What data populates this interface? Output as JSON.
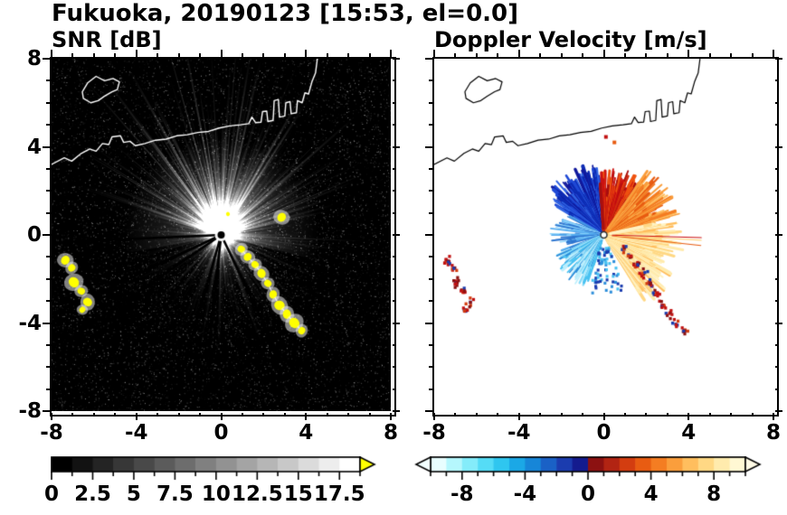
{
  "figure_title": "Fukuoka, 20190123 [15:53, el=0.0]",
  "panels": {
    "snr": {
      "title": "SNR [dB]",
      "y_tick_labels": [
        "8",
        "4",
        "0",
        "-4",
        "-8"
      ],
      "x_tick_labels": [
        "-8",
        "-4",
        "0",
        "4",
        "8"
      ]
    },
    "vel": {
      "title": "Doppler Velocity [m/s]",
      "x_tick_labels": [
        "-8",
        "-4",
        "0",
        "4",
        "8"
      ]
    }
  },
  "colorbars": {
    "snr": {
      "tick_labels": [
        "0",
        "2.5",
        "5",
        "7.5",
        "10",
        "12.5",
        "15",
        "17.5"
      ],
      "vmin": 0,
      "vmax": 18.75,
      "n_segments": 15,
      "label_step": 2.5,
      "minor_step": 1.25,
      "overflow_arrow_color": "#ffff00"
    },
    "vel": {
      "tick_labels": [
        "-8",
        "-4",
        "0",
        "4",
        "8"
      ],
      "vmin": -10,
      "vmax": 10,
      "label_step": 4,
      "minor_step": 1,
      "segment_colors": [
        "#e8feff",
        "#b5f7fd",
        "#84ecfa",
        "#55dcf6",
        "#2fc6ef",
        "#1ba8e6",
        "#1786d8",
        "#1a61c6",
        "#1b3caf",
        "#141b8e",
        "#8c1111",
        "#b22413",
        "#d33d10",
        "#e85c12",
        "#f47d22",
        "#fa9e3c",
        "#ffbe5e",
        "#ffd884",
        "#ffebad",
        "#fff8d3"
      ],
      "under_arrow_color": "#f2ffff",
      "over_arrow_color": "#fffbe6"
    }
  },
  "chart_data": {
    "type": "heatmap",
    "subtype": "radar_ppi_pair",
    "title": "Fukuoka, 20190123 [15:53, el=0.0]",
    "site": "Fukuoka",
    "date": "20190123",
    "time": "15:53",
    "elevation_deg": 0.0,
    "x_range": [
      -8,
      8
    ],
    "y_range": [
      -8,
      8
    ],
    "x_ticks": [
      -8,
      -4,
      0,
      4,
      8
    ],
    "y_ticks": [
      -8,
      -4,
      0,
      4,
      8
    ],
    "radar_origin": [
      0,
      0
    ],
    "panels": [
      {
        "variable": "SNR",
        "units": "dB",
        "colormap": "grayscale, discrete 15 steps, yellow overflow arrow",
        "scale_ticks": [
          0,
          2.5,
          5,
          7.5,
          10,
          12.5,
          15,
          17.5
        ],
        "description": "Black background with bright radial echo fan centered on the radar at the origin, strongest toward the north; thin blocked (black) rays to the west and southwest; saturated yellow ground-clutter patches southwest of the radar and along an island chain running southeast from the radar; coastline of Hakata Bay drawn in white along the top."
      },
      {
        "variable": "Doppler Velocity",
        "units": "m/s",
        "colormap": "diverging cyan-blue (negative) to red-orange-yellow (positive), discrete 20 steps with under/over arrows",
        "scale_ticks": [
          -8,
          -4,
          0,
          4,
          8
        ],
        "description": "White background; compact velocity fan around the radar: dark blue lobe to the north-northwest, cyan/light-blue streaks to the west and southwest, dark red/red lobe to the north-northeast, orange to the east-northeast and a broad pale-yellow fan to the east-southeast; scattered blue specks just south of the radar; red/blue clutter specks southwest and along the southeast island chain; coastline drawn in black."
      }
    ],
    "render": {
      "seed": 20190123,
      "coastline": {
        "main": [
          [
            -8,
            3.2
          ],
          [
            -7.4,
            3.5
          ],
          [
            -7.05,
            3.35
          ],
          [
            -6.6,
            3.7
          ],
          [
            -6.2,
            3.9
          ],
          [
            -5.9,
            3.8
          ],
          [
            -5.6,
            4.15
          ],
          [
            -5.3,
            4.1
          ],
          [
            -5.15,
            4.45
          ],
          [
            -4.75,
            4.5
          ],
          [
            -4.6,
            4.2
          ],
          [
            -4.3,
            4.25
          ],
          [
            -4.05,
            4.05
          ],
          [
            -3.6,
            4.15
          ],
          [
            -3.1,
            4.3
          ],
          [
            -2.6,
            4.35
          ],
          [
            -2.1,
            4.5
          ],
          [
            -1.6,
            4.55
          ],
          [
            -1.1,
            4.65
          ],
          [
            -0.6,
            4.7
          ],
          [
            -0.1,
            4.85
          ],
          [
            0.4,
            4.95
          ],
          [
            0.9,
            5.0
          ],
          [
            1.3,
            5.05
          ],
          [
            1.45,
            5.35
          ],
          [
            1.62,
            5.1
          ],
          [
            1.88,
            5.12
          ],
          [
            1.95,
            5.6
          ],
          [
            2.15,
            5.62
          ],
          [
            2.2,
            5.15
          ],
          [
            2.45,
            5.2
          ],
          [
            2.5,
            6.1
          ],
          [
            2.7,
            6.15
          ],
          [
            2.75,
            5.35
          ],
          [
            3.0,
            5.4
          ],
          [
            3.05,
            6.0
          ],
          [
            3.25,
            6.05
          ],
          [
            3.3,
            5.5
          ],
          [
            3.55,
            5.55
          ],
          [
            3.6,
            6.1
          ],
          [
            3.82,
            6.0
          ],
          [
            3.95,
            6.45
          ],
          [
            4.12,
            6.4
          ],
          [
            4.28,
            6.95
          ],
          [
            4.45,
            7.35
          ],
          [
            4.55,
            8.1
          ]
        ],
        "island": [
          [
            -6.5,
            6.2
          ],
          [
            -6.15,
            6.0
          ],
          [
            -5.8,
            6.1
          ],
          [
            -5.5,
            6.3
          ],
          [
            -5.15,
            6.5
          ],
          [
            -4.9,
            6.6
          ],
          [
            -4.8,
            6.95
          ],
          [
            -5.1,
            7.1
          ],
          [
            -5.5,
            7.0
          ],
          [
            -5.9,
            7.2
          ],
          [
            -6.3,
            6.9
          ],
          [
            -6.55,
            6.5
          ],
          [
            -6.5,
            6.2
          ]
        ]
      },
      "snr": {
        "sectors": [
          {
            "az0": 55,
            "az1": 140,
            "amp": 0.62
          },
          {
            "az0": 15,
            "az1": 165,
            "amp": 0.45
          },
          {
            "az0": 165,
            "az1": 200,
            "amp": 0.22
          },
          {
            "az0": 200,
            "az1": 255,
            "amp": 0.16
          },
          {
            "az0": 255,
            "az1": 305,
            "amp": 0.22
          },
          {
            "az0": 305,
            "az1": 345,
            "amp": 0.2
          },
          {
            "az0": 345,
            "az1": 375,
            "amp": 0.32
          }
        ],
        "blocked_az": [
          [
            181,
            184
          ],
          [
            203,
            206
          ],
          [
            212,
            215
          ],
          [
            252,
            255
          ],
          [
            262,
            265
          ],
          [
            295,
            298
          ]
        ]
      },
      "vel": {
        "sectors": [
          {
            "az0": 95,
            "az1": 150,
            "rmax": 3.3,
            "density": 1.0,
            "width": 3.0,
            "colors": [
              "#10189c",
              "#0c2bb4",
              "#1f49d6",
              "#2f62e2"
            ]
          },
          {
            "az0": 150,
            "az1": 200,
            "rmax": 2.7,
            "density": 0.4,
            "width": 2.0,
            "colors": [
              "#2f77d0",
              "#57aef0",
              "#8fd4fb"
            ]
          },
          {
            "az0": 200,
            "az1": 252,
            "rmax": 2.6,
            "density": 0.6,
            "width": 2.4,
            "colors": [
              "#49c2f1",
              "#8adcf9",
              "#2e8fdb",
              "#bdeffd"
            ]
          },
          {
            "az0": 55,
            "az1": 95,
            "rmax": 3.1,
            "density": 0.95,
            "width": 2.6,
            "colors": [
              "#a80f0f",
              "#d02c10",
              "#ef5310",
              "#cc1111"
            ]
          },
          {
            "az0": 12,
            "az1": 55,
            "rmax": 3.7,
            "density": 0.9,
            "width": 2.6,
            "colors": [
              "#f47d22",
              "#fa9e3c",
              "#ffbe5e",
              "#e85c12"
            ]
          },
          {
            "az0": -58,
            "az1": 12,
            "rmax": 3.8,
            "density": 0.85,
            "width": 2.6,
            "colors": [
              "#ffd884",
              "#ffebad",
              "#ffbe5e",
              "#fff3c4"
            ]
          }
        ],
        "below_specks": {
          "az0": 252,
          "az1": 292,
          "rmax": 2.7,
          "colors": [
            "#2e8fdb",
            "#49c2f1",
            "#1b3caf"
          ]
        },
        "long_rays": {
          "az_list": [
            -6,
            -3,
            -1.5
          ],
          "r": 4.6,
          "colors": [
            "#e85c12",
            "#ffd884",
            "#cc1111"
          ]
        },
        "stray_specks": [
          [
            0.1,
            4.45,
            "#c11212"
          ],
          [
            0.5,
            4.2,
            "#e85c12"
          ]
        ],
        "clutter_colors": [
          "#c11212",
          "#8c1111",
          "#1b3caf",
          "#d33d10"
        ]
      },
      "clutter": {
        "southwest": [
          [
            -7.35,
            -1.15,
            0.22
          ],
          [
            -7.05,
            -1.5,
            0.18
          ],
          [
            -6.95,
            -2.15,
            0.26
          ],
          [
            -6.6,
            -2.55,
            0.18
          ],
          [
            -6.3,
            -3.05,
            0.22
          ],
          [
            -6.55,
            -3.4,
            0.15
          ]
        ],
        "chain": [
          [
            0.95,
            -0.65,
            0.18
          ],
          [
            1.25,
            -1.0,
            0.2
          ],
          [
            1.6,
            -1.35,
            0.18
          ],
          [
            1.9,
            -1.75,
            0.22
          ],
          [
            2.2,
            -2.2,
            0.18
          ],
          [
            2.45,
            -2.7,
            0.2
          ],
          [
            2.75,
            -3.2,
            0.25
          ],
          [
            3.1,
            -3.6,
            0.22
          ],
          [
            3.45,
            -4.0,
            0.26
          ],
          [
            3.8,
            -4.35,
            0.18
          ]
        ],
        "extra": [
          [
            2.85,
            0.8,
            0.22
          ],
          [
            0.32,
            0.95,
            0.1
          ]
        ]
      }
    }
  }
}
